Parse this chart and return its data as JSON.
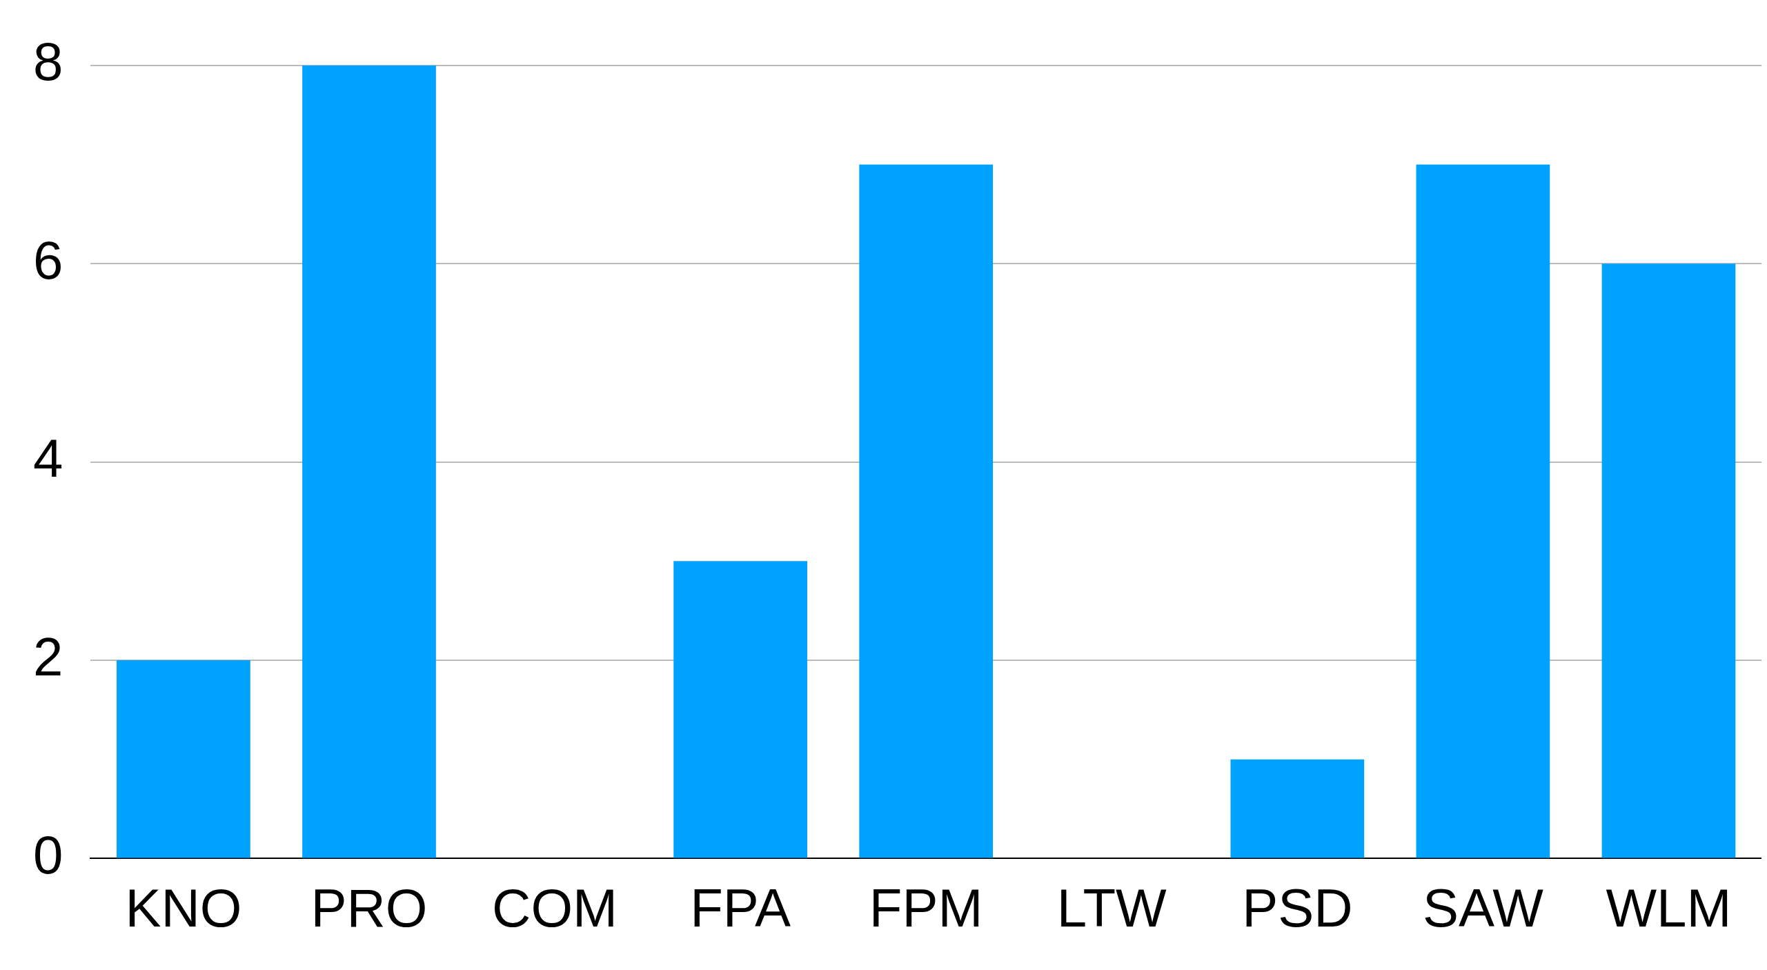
{
  "chart_data": {
    "type": "bar",
    "categories": [
      "KNO",
      "PRO",
      "COM",
      "FPA",
      "FPM",
      "LTW",
      "PSD",
      "SAW",
      "WLM"
    ],
    "values": [
      2,
      8,
      0,
      3,
      7,
      0,
      1,
      7,
      6
    ],
    "color": "#00a2ff",
    "ylim": [
      0,
      8
    ],
    "yticks": [
      0,
      2,
      4,
      6,
      8
    ],
    "grid": "y",
    "legend": false
  }
}
